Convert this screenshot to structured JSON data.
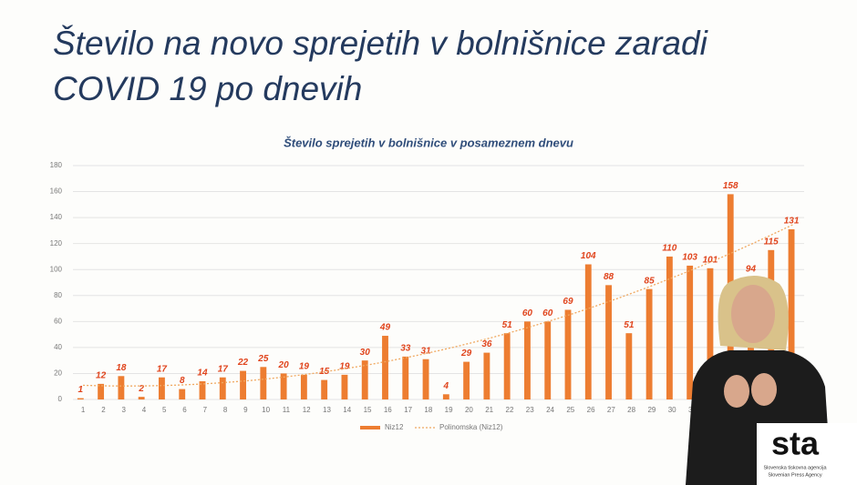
{
  "chart_data": {
    "type": "bar",
    "title_lines": [
      "Število na novo sprejetih v bolnišnice zaradi",
      "COVID 19 po dnevih"
    ],
    "subtitle": "Število sprejetih v bolnišnice v posameznem dnevu",
    "categories": [
      "1",
      "2",
      "3",
      "4",
      "5",
      "6",
      "7",
      "8",
      "9",
      "10",
      "11",
      "12",
      "13",
      "14",
      "15",
      "16",
      "17",
      "18",
      "19",
      "20",
      "21",
      "22",
      "23",
      "24",
      "25",
      "26",
      "27",
      "28",
      "29",
      "30",
      "31",
      null,
      null,
      null,
      null,
      null
    ],
    "series": [
      {
        "name": "Niz12",
        "color": "#ed7d31",
        "values": [
          1,
          12,
          18,
          2,
          17,
          8,
          14,
          17,
          22,
          25,
          20,
          19,
          15,
          19,
          30,
          49,
          33,
          31,
          4,
          29,
          36,
          51,
          60,
          60,
          69,
          104,
          88,
          51,
          85,
          110,
          103,
          101,
          158,
          94,
          115,
          131
        ]
      }
    ],
    "trendline": {
      "name": "Polinomska (Niz12)",
      "color": "#f0a860"
    },
    "ylim": [
      0,
      180
    ],
    "yticks": [
      0,
      20,
      40,
      60,
      80,
      100,
      120,
      140,
      160,
      180
    ],
    "grid": true,
    "legend": "bottom",
    "logo": {
      "mark": "sta",
      "line1": "Slovenska tiskovna agencija",
      "line2": "Slovenian Press Agency"
    }
  }
}
